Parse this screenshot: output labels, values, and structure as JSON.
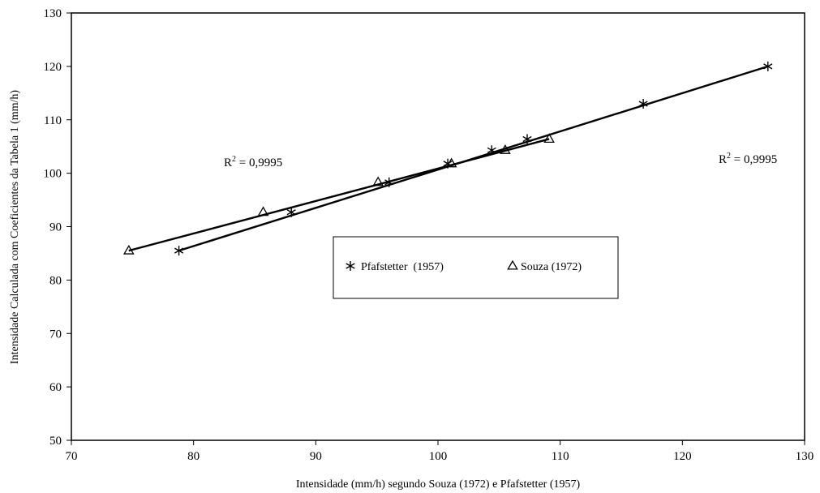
{
  "chart_data": {
    "type": "scatter",
    "xlabel": "Intensidade (mm/h) segundo Souza (1972) e Pfafstetter (1957)",
    "ylabel": "Intensidade Calculada com Coeficientes da Tabela 1 (mm/h)",
    "xlim": [
      70,
      130
    ],
    "ylim": [
      50,
      130
    ],
    "x_ticks": [
      "70",
      "80",
      "90",
      "100",
      "110",
      "120",
      "130"
    ],
    "y_ticks": [
      "50",
      "60",
      "70",
      "80",
      "90",
      "100",
      "110",
      "120",
      "130"
    ],
    "grid": false,
    "legend_position": "center",
    "series": [
      {
        "name": "Pfafstetter  (1957)",
        "marker": "asterisk",
        "x": [
          78.8,
          88.0,
          96.0,
          100.8,
          104.4,
          107.3,
          116.8,
          127.0
        ],
        "y": [
          85.5,
          92.7,
          98.3,
          101.8,
          104.3,
          106.4,
          113.0,
          120.0
        ],
        "trendline": {
          "x1": 78.8,
          "y1": 85.5,
          "x2": 127.0,
          "y2": 120.0
        }
      },
      {
        "name": "Souza (1972)",
        "marker": "triangle",
        "x": [
          74.7,
          85.7,
          95.1,
          101.1,
          105.5,
          109.1
        ],
        "y": [
          85.5,
          92.7,
          98.3,
          101.8,
          104.3,
          106.4
        ],
        "trendline": {
          "x1": 74.7,
          "y1": 85.5,
          "x2": 109.1,
          "y2": 106.4
        }
      }
    ],
    "annotations": [
      {
        "base": "R",
        "sup": "2",
        "text": " = 0,9995",
        "near": "Souza (1972)"
      },
      {
        "base": "R",
        "sup": "2",
        "text": " = 0,9995",
        "near": "Pfafstetter  (1957)"
      }
    ]
  }
}
